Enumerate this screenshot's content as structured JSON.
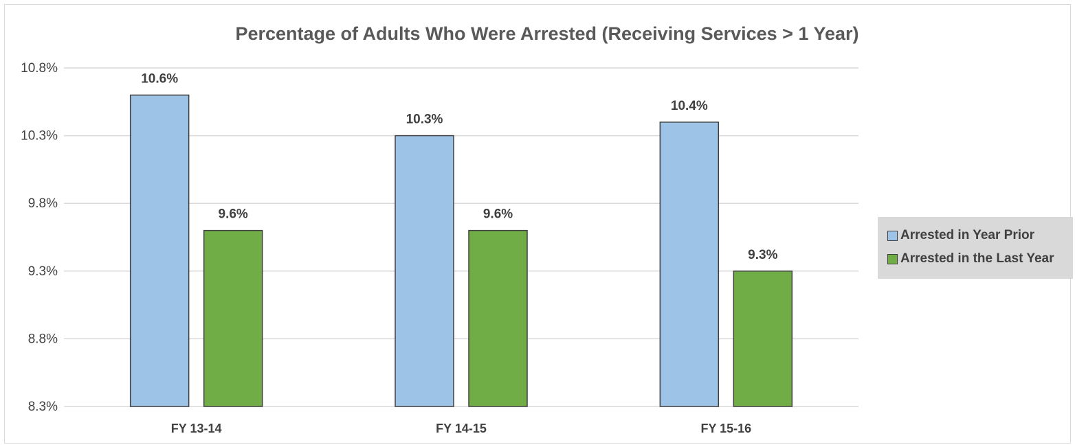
{
  "chart_data": {
    "type": "bar",
    "title": "Percentage of Adults Who Were Arrested (Receiving Services > 1 Year)",
    "categories": [
      "FY 13-14",
      "FY 14-15",
      "FY 15-16"
    ],
    "series": [
      {
        "name": "Arrested in Year Prior",
        "values": [
          10.6,
          10.3,
          10.4
        ],
        "labels": [
          "10.6%",
          "10.3%",
          "10.4%"
        ],
        "color": "#9dc3e6"
      },
      {
        "name": "Arrested in the Last Year",
        "values": [
          9.6,
          9.6,
          9.3
        ],
        "labels": [
          "9.6%",
          "9.6%",
          "9.3%"
        ],
        "color": "#70ad47"
      }
    ],
    "ylim": [
      8.3,
      10.8
    ],
    "yticks": [
      8.3,
      8.8,
      9.3,
      9.8,
      10.3,
      10.8
    ],
    "ytick_labels": [
      "8.3%",
      "8.8%",
      "9.3%",
      "9.8%",
      "10.3%",
      "10.8%"
    ],
    "grid": true,
    "legend": "right",
    "bar_outline_color": "#404040",
    "gridline_color": "#d9d9d9",
    "text_color": "#404040"
  }
}
